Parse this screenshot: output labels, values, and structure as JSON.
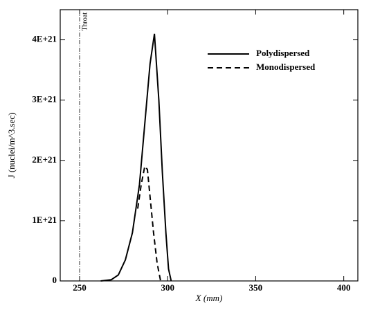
{
  "chart_data": {
    "type": "line",
    "x_label": "X (mm)",
    "y_label": "J (nuclei/m^3.sec)",
    "xlim": [
      239,
      408
    ],
    "ylim": [
      0,
      4.5e+21
    ],
    "xticks": [
      250,
      300,
      350,
      400
    ],
    "yticks": [
      0,
      {
        "value": 1e+21,
        "label": "1E+21"
      },
      {
        "value": 2e+21,
        "label": "2E+21"
      },
      {
        "value": 3e+21,
        "label": "3E+21"
      },
      {
        "value": 4e+21,
        "label": "4E+21"
      }
    ],
    "annotations": [
      {
        "x": 250,
        "text": "Throat"
      }
    ],
    "legend": "upper right",
    "series": [
      {
        "name": "Polydispersed",
        "color": "#000000",
        "linestyle": "solid",
        "x": [
          262,
          268,
          272,
          276,
          280,
          284,
          287,
          290,
          292.5,
          295,
          297,
          299,
          300.5,
          302
        ],
        "values": [
          0,
          2e+19,
          1e+20,
          3.5e+20,
          8e+20,
          1.6e+21,
          2.6e+21,
          3.6e+21,
          4.1e+21,
          3e+21,
          1.8e+21,
          8e+20,
          2e+20,
          0
        ]
      },
      {
        "name": "Monodispersed",
        "color": "#000000",
        "linestyle": "dashed",
        "x": [
          283,
          285,
          287,
          288.5,
          290,
          292,
          294,
          296
        ],
        "values": [
          1.2e+21,
          1.6e+21,
          1.9e+21,
          1.85e+21,
          1.4e+21,
          8e+20,
          3e+20,
          0
        ]
      }
    ]
  }
}
